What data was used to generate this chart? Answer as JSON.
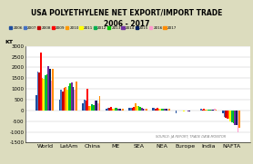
{
  "title1": "USA POLYETHYLENE NET EXPORT/IMPORT TRADE",
  "title2": "2006 - 2017",
  "ylabel": "KT",
  "ylim": [
    -1500,
    3000
  ],
  "yticks": [
    -1500,
    -1000,
    -500,
    0,
    500,
    1000,
    1500,
    2000,
    2500,
    3000
  ],
  "categories": [
    "World",
    "LatAm",
    "China",
    "ME",
    "SEA",
    "NEA",
    "Europe",
    "India",
    "NAFTA"
  ],
  "years": [
    "2006",
    "2007",
    "2008",
    "2009",
    "2010",
    "2011",
    "2012",
    "2013",
    "2014",
    "2015",
    "2016",
    "2017"
  ],
  "colors": [
    "#1f4e9e",
    "#4472c4",
    "#c00000",
    "#ff0000",
    "#ff9900",
    "#ffff00",
    "#00b050",
    "#00cc00",
    "#7030a0",
    "#002060",
    "#ff99cc",
    "#ff8c00"
  ],
  "data": {
    "World": [
      700,
      1800,
      1750,
      2700,
      1500,
      1450,
      1650,
      1700,
      2050,
      1950,
      1400,
      1950
    ],
    "LatAm": [
      500,
      950,
      900,
      1050,
      1100,
      950,
      1150,
      1250,
      1300,
      1100,
      950,
      1350
    ],
    "China": [
      350,
      500,
      450,
      1000,
      200,
      200,
      300,
      250,
      450,
      450,
      350,
      650
    ],
    "ME": [
      100,
      130,
      120,
      150,
      100,
      80,
      120,
      130,
      100,
      80,
      50,
      80
    ],
    "SEA": [
      130,
      120,
      130,
      150,
      350,
      200,
      200,
      150,
      130,
      100,
      80,
      100
    ],
    "NEA": [
      130,
      120,
      100,
      120,
      100,
      80,
      100,
      100,
      80,
      60,
      50,
      80
    ],
    "Europe": [
      -150,
      -10,
      -20,
      -10,
      -20,
      -30,
      -20,
      -20,
      -30,
      -30,
      -20,
      -20
    ],
    "India": [
      -10,
      60,
      50,
      60,
      50,
      40,
      50,
      50,
      50,
      40,
      80,
      50
    ],
    "NAFTA": [
      -150,
      -300,
      -350,
      -400,
      -400,
      -500,
      -550,
      -600,
      -700,
      -700,
      -1000,
      -800
    ]
  },
  "background_color": "#dcdcbe",
  "plot_background": "#ffffff",
  "source_text": "SOURCE: JA REPORT; TRADE DATA MONITOR"
}
